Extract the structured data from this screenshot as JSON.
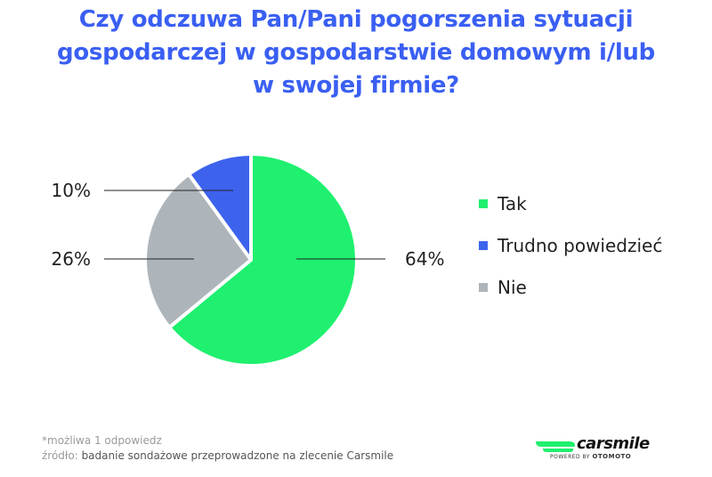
{
  "title_lines": [
    "Czy odczuwa Pan/Pani pogorszenia sytuacji",
    "gospodarczej w gospodarstwie domowym i/lub",
    "w swojej firmie?"
  ],
  "colors": {
    "title": "#3a5ff2",
    "tak": "#1ff06f",
    "trudno": "#3d63ed",
    "nie": "#adb5bb"
  },
  "chart_data": {
    "type": "pie",
    "title": "Czy odczuwa Pan/Pani pogorszenia sytuacji gospodarczej w gospodarstwie domowym i/lub w swojej firmie?",
    "slices": [
      {
        "label": "Tak",
        "value": 64,
        "display": "64%",
        "color": "#1ff06f"
      },
      {
        "label": "Nie",
        "value": 26,
        "display": "26%",
        "color": "#adb5bb"
      },
      {
        "label": "Trudno powiedzieć",
        "value": 10,
        "display": "10%",
        "color": "#3d63ed"
      }
    ],
    "legend": [
      "Tak",
      "Trudno powiedzieć",
      "Nie"
    ],
    "legend_position": "right"
  },
  "footnote": {
    "note": "*możliwa 1 odpowiedz",
    "source_label": "źródło:",
    "source_value": "badanie sondażowe przeprowadzone na zlecenie Carsmile"
  },
  "logo": {
    "name": "carsmile",
    "powered_by": "POWERED BY",
    "partner": "OTOMOTO"
  }
}
